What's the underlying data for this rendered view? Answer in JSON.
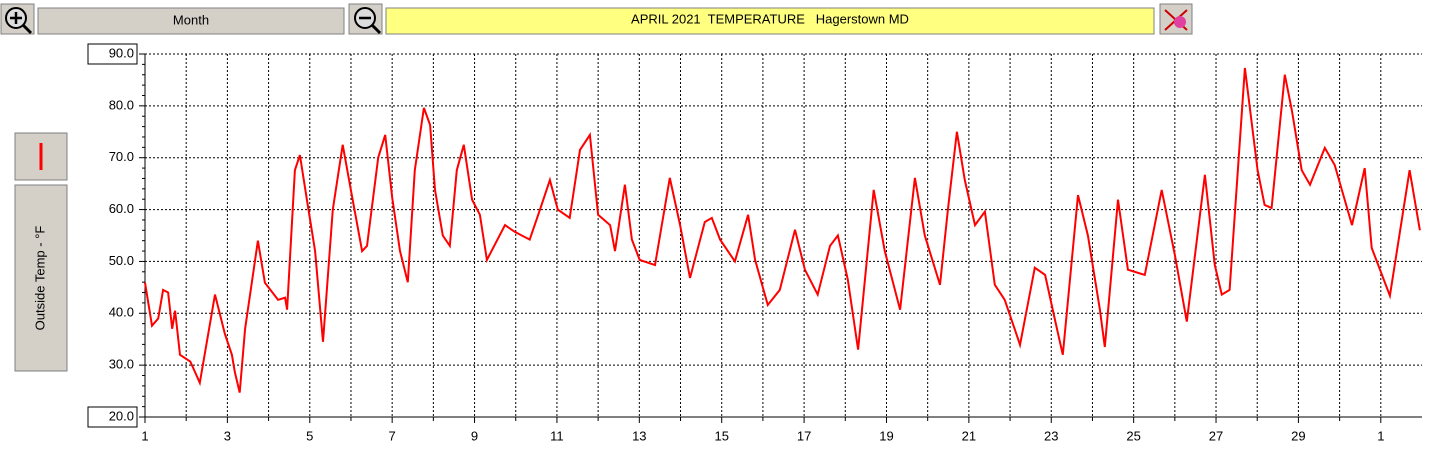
{
  "toolbar": {
    "range": "Month"
  },
  "chart_data": {
    "type": "line",
    "title": "APRIL 2021  TEMPERATURE   Hagerstown MD",
    "x": [
      1,
      1.17,
      1.32,
      1.44,
      1.56,
      1.66,
      1.73,
      1.85,
      2.1,
      2.33,
      2.7,
      2.94,
      3.11,
      3.18,
      3.3,
      3.43,
      3.74,
      3.91,
      4.23,
      4.4,
      4.45,
      4.64,
      4.76,
      4.93,
      5.13,
      5.32,
      5.56,
      5.8,
      6.02,
      6.27,
      6.39,
      6.66,
      6.83,
      7.0,
      7.19,
      7.38,
      7.55,
      7.77,
      7.92,
      8.04,
      8.23,
      8.4,
      8.57,
      8.74,
      8.94,
      9.13,
      9.3,
      9.74,
      9.98,
      10.34,
      10.59,
      10.83,
      11.02,
      11.31,
      11.56,
      11.8,
      12.0,
      12.29,
      12.41,
      12.65,
      12.82,
      13.01,
      13.38,
      13.74,
      13.99,
      14.23,
      14.59,
      14.76,
      14.96,
      15.32,
      15.64,
      15.81,
      16.12,
      16.41,
      16.78,
      17.02,
      17.33,
      17.63,
      17.82,
      18.06,
      18.31,
      18.69,
      18.96,
      19.33,
      19.69,
      19.93,
      20.3,
      20.49,
      20.71,
      20.9,
      21.15,
      21.39,
      21.63,
      21.87,
      22.12,
      22.24,
      22.6,
      22.85,
      23.09,
      23.28,
      23.65,
      23.89,
      24.18,
      24.3,
      24.62,
      24.86,
      25.27,
      25.68,
      26.0,
      26.29,
      26.73,
      26.97,
      27.14,
      27.33,
      27.7,
      28.01,
      28.18,
      28.35,
      28.67,
      28.84,
      29.08,
      29.28,
      29.64,
      29.88,
      30.3,
      30.61,
      30.78,
      30.98,
      31.22,
      31.7,
      31.95
    ],
    "series": [
      {
        "name": "Outside Temp - °F",
        "color": "#ff0000",
        "values": [
          45.9,
          37.6,
          39,
          44.5,
          44,
          37,
          40.5,
          32,
          30.7,
          26.6,
          43.6,
          36,
          32,
          28.7,
          24.7,
          37,
          54,
          45.9,
          42.6,
          43,
          40.7,
          67.6,
          70.5,
          61.9,
          52,
          34.5,
          60,
          72.5,
          62.8,
          52,
          53,
          70,
          74.4,
          62.3,
          52,
          46,
          67.6,
          79.6,
          76.3,
          63.8,
          55,
          53,
          67.6,
          72.5,
          61.9,
          59,
          50.3,
          57,
          55.7,
          54.2,
          60,
          65.7,
          60,
          58.4,
          71.5,
          74.4,
          59,
          57,
          52,
          64.8,
          54.2,
          50.3,
          49.3,
          66.1,
          57,
          46.8,
          57.6,
          58.4,
          54.2,
          50,
          59,
          50.3,
          41.6,
          44.5,
          56.1,
          48.4,
          43.6,
          53,
          55,
          46.5,
          33,
          63.8,
          52,
          40.7,
          66.1,
          55,
          45.5,
          60,
          75,
          65.7,
          57,
          59.6,
          45.5,
          42.6,
          36.8,
          33.9,
          48.8,
          47.4,
          38.7,
          32,
          62.8,
          55,
          40.7,
          33.5,
          61.9,
          48.4,
          47.4,
          63.8,
          51.3,
          38.4,
          66.7,
          49.3,
          43.6,
          44.5,
          87.3,
          67.6,
          60.9,
          60.3,
          86,
          79.2,
          67.6,
          64.8,
          71.9,
          68.6,
          57,
          68,
          52.6,
          48.4,
          43.4,
          67.6,
          56
        ]
      }
    ],
    "xlim": [
      1,
      32
    ],
    "xticks": [
      1,
      3,
      5,
      7,
      9,
      11,
      13,
      15,
      17,
      19,
      21,
      23,
      25,
      27,
      29,
      {
        "value": 31,
        "label": "1"
      }
    ],
    "ylim": [
      20,
      90
    ],
    "yticks": [
      {
        "value": 20,
        "label": "20.0"
      },
      {
        "value": 30,
        "label": "30.0"
      },
      {
        "value": 40,
        "label": "40.0"
      },
      {
        "value": 50,
        "label": "50.0"
      },
      {
        "value": 60,
        "label": "60.0"
      },
      {
        "value": 70,
        "label": "70.0"
      },
      {
        "value": 80,
        "label": "80.0"
      },
      {
        "value": 90,
        "label": "90.0"
      }
    ],
    "grid": true
  }
}
